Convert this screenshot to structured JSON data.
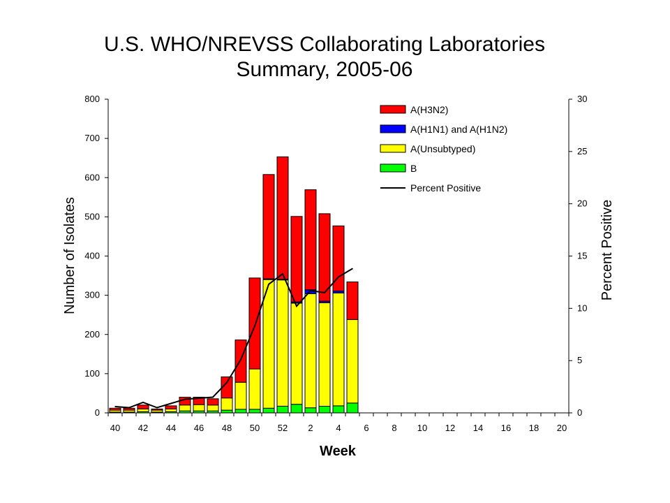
{
  "chart_data": {
    "type": "bar",
    "stacked": true,
    "title_line1": "U.S. WHO/NREVSS Collaborating Laboratories",
    "title_line2": "Summary, 2005-06",
    "xlabel": "Week",
    "ylabel": "Number of Isolates",
    "y2label": "Percent Positive",
    "ylim": [
      0,
      800
    ],
    "y2lim": [
      0,
      30
    ],
    "yticks": [
      0,
      100,
      200,
      300,
      400,
      500,
      600,
      700,
      800
    ],
    "y2ticks": [
      0,
      5,
      10,
      15,
      20,
      25,
      30
    ],
    "x": [
      "40",
      "41",
      "42",
      "43",
      "44",
      "45",
      "46",
      "47",
      "48",
      "49",
      "50",
      "51",
      "52",
      "1",
      "2",
      "3",
      "4",
      "5",
      "6",
      "7",
      "8",
      "9",
      "10",
      "11",
      "12",
      "13",
      "14",
      "15",
      "16",
      "17",
      "18",
      "19",
      "20"
    ],
    "xtick_labels": [
      "40",
      "42",
      "44",
      "46",
      "48",
      "50",
      "52",
      "2",
      "4",
      "6",
      "8",
      "10",
      "12",
      "14",
      "16",
      "18",
      "20"
    ],
    "series": [
      {
        "name": "B",
        "color": "#00ff00",
        "values": [
          2,
          2,
          3,
          2,
          3,
          5,
          5,
          5,
          7,
          9,
          9,
          12,
          17,
          22,
          13,
          17,
          18,
          25,
          null,
          null,
          null,
          null,
          null,
          null,
          null,
          null,
          null,
          null,
          null,
          null,
          null,
          null,
          null
        ]
      },
      {
        "name": "A(Unsubtyped)",
        "color": "#ffff00",
        "values": [
          5,
          5,
          7,
          5,
          7,
          15,
          16,
          15,
          31,
          69,
          103,
          328,
          322,
          258,
          291,
          264,
          288,
          213,
          null,
          null,
          null,
          null,
          null,
          null,
          null,
          null,
          null,
          null,
          null,
          null,
          null,
          null,
          null
        ]
      },
      {
        "name": "A(H1N1) and A(H1N2)",
        "color": "#0000ff",
        "values": [
          0,
          0,
          0,
          0,
          0,
          0,
          0,
          0,
          0,
          0,
          0,
          2,
          2,
          3,
          10,
          4,
          5,
          0,
          null,
          null,
          null,
          null,
          null,
          null,
          null,
          null,
          null,
          null,
          null,
          null,
          null,
          null,
          null
        ]
      },
      {
        "name": "A(H3N2)",
        "color": "#ff0000",
        "values": [
          5,
          5,
          10,
          3,
          8,
          20,
          19,
          16,
          54,
          108,
          232,
          266,
          312,
          218,
          255,
          223,
          166,
          96,
          null,
          null,
          null,
          null,
          null,
          null,
          null,
          null,
          null,
          null,
          null,
          null,
          null,
          null,
          null
        ]
      }
    ],
    "line_series": {
      "name": "Percent Positive",
      "color": "#000000",
      "axis": "right",
      "values": [
        0.6,
        0.5,
        1.0,
        0.5,
        0.9,
        1.3,
        1.4,
        1.5,
        2.9,
        5.1,
        8.3,
        12.3,
        13.3,
        10.2,
        11.7,
        11.5,
        13.0,
        13.8,
        null,
        null,
        null,
        null,
        null,
        null,
        null,
        null,
        null,
        null,
        null,
        null,
        null,
        null,
        null
      ]
    },
    "legend": {
      "placement": "top-right",
      "items": [
        {
          "label": "A(H3N2)",
          "color": "#ff0000",
          "kind": "box"
        },
        {
          "label": "A(H1N1) and A(H1N2)",
          "color": "#0000ff",
          "kind": "box"
        },
        {
          "label": "A(Unsubtyped)",
          "color": "#ffff00",
          "kind": "box"
        },
        {
          "label": "B",
          "color": "#00ff00",
          "kind": "box"
        },
        {
          "label": "Percent Positive",
          "color": "#000000",
          "kind": "line"
        }
      ]
    },
    "grid": false
  }
}
